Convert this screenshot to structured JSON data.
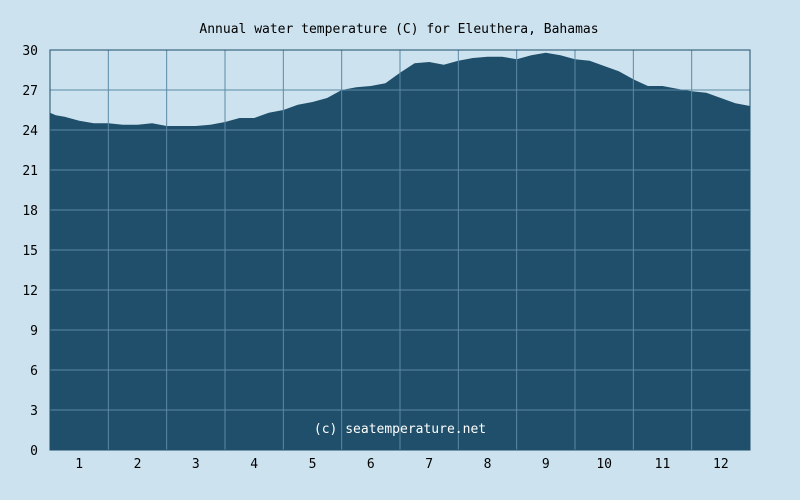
{
  "chart_data": {
    "type": "area",
    "title": "Annual water temperature (C) for Eleuthera, Bahamas",
    "xlabel": "",
    "ylabel": "",
    "xlim": [
      0.5,
      12.5
    ],
    "ylim": [
      0,
      30
    ],
    "x_ticks": [
      1,
      2,
      3,
      4,
      5,
      6,
      7,
      8,
      9,
      10,
      11,
      12
    ],
    "x_tick_labels": [
      "1",
      "2",
      "3",
      "4",
      "5",
      "6",
      "7",
      "8",
      "9",
      "10",
      "11",
      "12"
    ],
    "y_ticks": [
      0,
      3,
      6,
      9,
      12,
      15,
      18,
      21,
      24,
      27,
      30
    ],
    "y_tick_labels": [
      "0",
      "3",
      "6",
      "9",
      "12",
      "15",
      "18",
      "21",
      "24",
      "27",
      "30"
    ],
    "grid": true,
    "annotation": "(c) seatemperature.net",
    "colors": {
      "background": "#cce2ee",
      "fill": "#1f4f6a",
      "grid": "#5c8aa6",
      "axis": "#1f4f6a"
    },
    "series": [
      {
        "x": [
          0.5,
          0.6,
          0.75,
          1.0,
          1.25,
          1.5,
          1.75,
          2.0,
          2.25,
          2.5,
          2.75,
          3.0,
          3.25,
          3.5,
          3.75,
          4.0,
          4.25,
          4.5,
          4.75,
          5.0,
          5.25,
          5.5,
          5.75,
          6.0,
          6.25,
          6.5,
          6.75,
          7.0,
          7.25,
          7.5,
          7.75,
          8.0,
          8.25,
          8.5,
          8.75,
          9.0,
          9.25,
          9.5,
          9.75,
          10.0,
          10.25,
          10.5,
          10.75,
          11.0,
          11.25,
          11.5,
          11.75,
          12.0,
          12.25,
          12.5
        ],
        "values": [
          25.3,
          25.1,
          25.0,
          24.7,
          24.5,
          24.5,
          24.4,
          24.4,
          24.5,
          24.3,
          24.3,
          24.3,
          24.4,
          24.6,
          24.9,
          24.9,
          25.3,
          25.5,
          25.9,
          26.1,
          26.4,
          27.0,
          27.2,
          27.3,
          27.5,
          28.3,
          29.0,
          29.1,
          28.9,
          29.2,
          29.4,
          29.5,
          29.5,
          29.3,
          29.6,
          29.8,
          29.6,
          29.3,
          29.2,
          28.8,
          28.4,
          27.8,
          27.3,
          27.3,
          27.1,
          26.9,
          26.8,
          26.4,
          26.0,
          25.8
        ]
      }
    ]
  }
}
